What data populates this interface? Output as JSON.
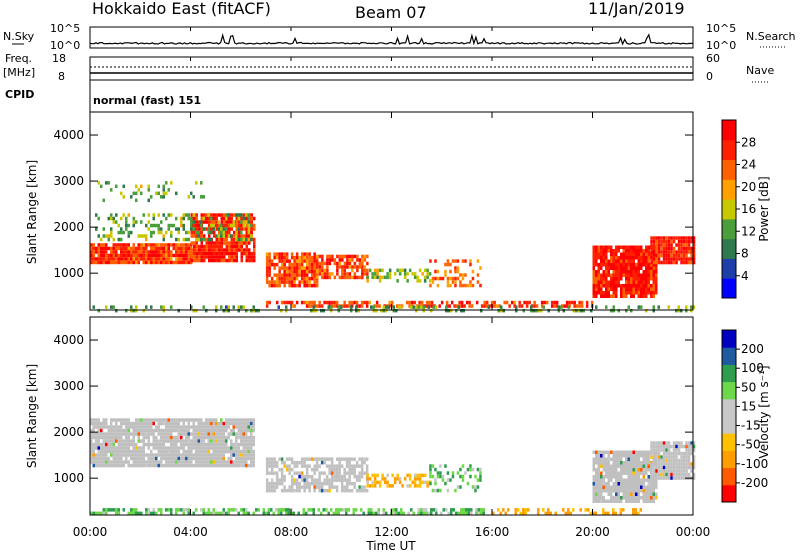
{
  "header": {
    "title": "Hokkaido East (fitACF)",
    "beam": "Beam 07",
    "date": "11/Jan/2019"
  },
  "top_panels": {
    "nsky_label": "N.Sky",
    "nsky_ticks": [
      "10^5",
      "10^0"
    ],
    "nsearch_label": "N.Search",
    "nsearch_ticks": [
      "10^5",
      "10^0"
    ],
    "freq_label_1": "Freq.",
    "freq_label_2": "[MHz]",
    "freq_ticks": [
      "18",
      "8"
    ],
    "nave_label": "Nave",
    "nave_ticks": [
      "60",
      "0"
    ],
    "cpid_label": "CPID",
    "cpid_value": "normal (fast) 151"
  },
  "colors": {
    "power_scale": [
      "#0000ff",
      "#1e3ea8",
      "#2e7a4e",
      "#4a9e3c",
      "#c8c800",
      "#ffa000",
      "#ff6000",
      "#ff2000",
      "#ff0000"
    ],
    "velocity_scale": [
      "#ff0000",
      "#ff5a00",
      "#ff9e00",
      "#ffc000",
      "#c8c8c8",
      "#c8c8c8",
      "#6cd84a",
      "#2e9e4e",
      "#1e5aa0",
      "#0000c0"
    ],
    "ground_scatter": "#c0c0c0"
  },
  "chart_data": [
    {
      "type": "heatmap",
      "name": "power",
      "ylabel": "Slant Range [km]",
      "yticks": [
        "1000",
        "2000",
        "3000",
        "4000"
      ],
      "ylim": [
        200,
        4500
      ],
      "xlim": [
        0,
        24
      ],
      "colorbar_label": "Power [dB]",
      "colorbar_ticks": [
        "4",
        "8",
        "12",
        "16",
        "20",
        "24",
        "28"
      ],
      "colorbar_range": [
        0,
        32
      ],
      "regions": [
        {
          "t0": 0.0,
          "t1": 4.0,
          "r0": 1250,
          "r1": 1650,
          "level": 26,
          "density": 0.95
        },
        {
          "t0": 4.0,
          "t1": 6.5,
          "r0": 1300,
          "r1": 2300,
          "level": 27,
          "density": 0.9
        },
        {
          "t0": 0.2,
          "t1": 6.5,
          "r0": 1700,
          "r1": 2300,
          "level": 13,
          "density": 0.35
        },
        {
          "t0": 0.2,
          "t1": 4.5,
          "r0": 2600,
          "r1": 3000,
          "level": 13,
          "density": 0.12
        },
        {
          "t0": 7.0,
          "t1": 9.0,
          "r0": 700,
          "r1": 1450,
          "level": 25,
          "density": 0.85
        },
        {
          "t0": 9.0,
          "t1": 11.0,
          "r0": 900,
          "r1": 1400,
          "level": 25,
          "density": 0.7
        },
        {
          "t0": 11.0,
          "t1": 13.5,
          "r0": 800,
          "r1": 1100,
          "level": 14,
          "density": 0.55
        },
        {
          "t0": 13.5,
          "t1": 15.5,
          "r0": 700,
          "r1": 1300,
          "level": 23,
          "density": 0.3
        },
        {
          "t0": 7.0,
          "t1": 20.0,
          "r0": 250,
          "r1": 400,
          "level": 26,
          "density": 0.6
        },
        {
          "t0": 20.0,
          "t1": 22.5,
          "r0": 500,
          "r1": 1600,
          "level": 28,
          "density": 0.9
        },
        {
          "t0": 22.3,
          "t1": 24.0,
          "r0": 1200,
          "r1": 1800,
          "level": 28,
          "density": 0.95
        },
        {
          "t0": 0.0,
          "t1": 24.0,
          "r0": 200,
          "r1": 300,
          "level": 12,
          "density": 0.3
        }
      ]
    },
    {
      "type": "heatmap",
      "name": "velocity",
      "ylabel": "Slant Range [km]",
      "yticks": [
        "1000",
        "2000",
        "3000",
        "4000"
      ],
      "ylim": [
        200,
        4500
      ],
      "xlim": [
        0,
        24
      ],
      "xticks": [
        "00:00",
        "04:00",
        "08:00",
        "12:00",
        "16:00",
        "20:00",
        "00:00"
      ],
      "xlabel": "Time UT",
      "colorbar_label": "Velocity [m s⁻¹]",
      "colorbar_ticks": [
        "-200",
        "-100",
        "-50",
        "-15",
        "15",
        "50",
        "100",
        "200"
      ],
      "regions": [
        {
          "t0": 0.0,
          "t1": 6.5,
          "r0": 1250,
          "r1": 2300,
          "level": "gs",
          "density": 0.9
        },
        {
          "t0": 7.0,
          "t1": 11.0,
          "r0": 700,
          "r1": 1450,
          "level": "gs",
          "density": 0.7
        },
        {
          "t0": 11.0,
          "t1": 13.5,
          "r0": 800,
          "r1": 1100,
          "level": -40,
          "density": 0.6
        },
        {
          "t0": 13.5,
          "t1": 15.5,
          "r0": 700,
          "r1": 1300,
          "level": 40,
          "density": 0.3
        },
        {
          "t0": 0.0,
          "t1": 16.0,
          "r0": 200,
          "r1": 350,
          "level": 40,
          "density": 0.55
        },
        {
          "t0": 16.0,
          "t1": 22.0,
          "r0": 200,
          "r1": 350,
          "level": -60,
          "density": 0.5
        },
        {
          "t0": 20.0,
          "t1": 22.5,
          "r0": 500,
          "r1": 1600,
          "level": "gs",
          "density": 0.9
        },
        {
          "t0": 22.3,
          "t1": 24.0,
          "r0": 1000,
          "r1": 1800,
          "level": "gs",
          "density": 0.9
        }
      ]
    }
  ]
}
